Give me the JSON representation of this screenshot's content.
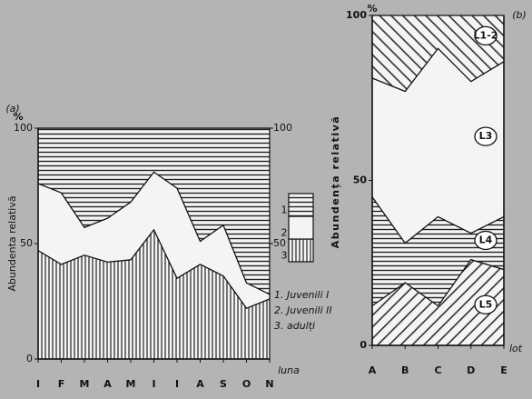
{
  "chart_data": [
    {
      "type": "stacked_area",
      "panel_label": "(a)",
      "y_label": "Abundenta relativă",
      "y_unit": "%",
      "x_label": "luna",
      "categories": [
        "I",
        "F",
        "M",
        "A",
        "M",
        "I",
        "I",
        "A",
        "S",
        "O",
        "N"
      ],
      "ylim": [
        0,
        100
      ],
      "yticks": [
        0,
        50,
        100
      ],
      "y2lim": [
        0,
        100
      ],
      "y2ticks": [
        50,
        100
      ],
      "legend_keys": [
        "1",
        "2",
        "3"
      ],
      "series": [
        {
          "name": "3. adulți",
          "pattern": "vertical",
          "values": [
            47,
            41,
            45,
            42,
            43,
            56,
            35,
            41,
            36,
            22,
            26
          ]
        },
        {
          "name": "2. Juvenili II",
          "pattern": "none",
          "values": [
            29,
            31,
            12,
            19,
            25,
            25,
            39,
            10,
            22,
            11,
            2
          ]
        },
        {
          "name": "1. Juvenili I",
          "pattern": "horizontal",
          "values": [
            24,
            28,
            43,
            39,
            32,
            19,
            26,
            49,
            42,
            67,
            72
          ]
        }
      ]
    },
    {
      "type": "stacked_area",
      "panel_label": "(b)",
      "y_label": "Abundența relativă",
      "y_unit": "%",
      "x_label": "lot",
      "categories": [
        "A",
        "B",
        "C",
        "D",
        "E"
      ],
      "ylim": [
        0,
        100
      ],
      "yticks": [
        0,
        50,
        100
      ],
      "series": [
        {
          "name": "L5",
          "pattern": "diag-down",
          "values": [
            12,
            19,
            12,
            26,
            23
          ]
        },
        {
          "name": "L4",
          "pattern": "horizontal",
          "values": [
            33,
            12,
            27,
            8,
            16
          ]
        },
        {
          "name": "L3",
          "pattern": "none",
          "values": [
            36,
            46,
            51,
            46,
            47
          ]
        },
        {
          "name": "L1-2",
          "pattern": "diag-up",
          "values": [
            19,
            23,
            10,
            20,
            14
          ]
        }
      ]
    }
  ]
}
